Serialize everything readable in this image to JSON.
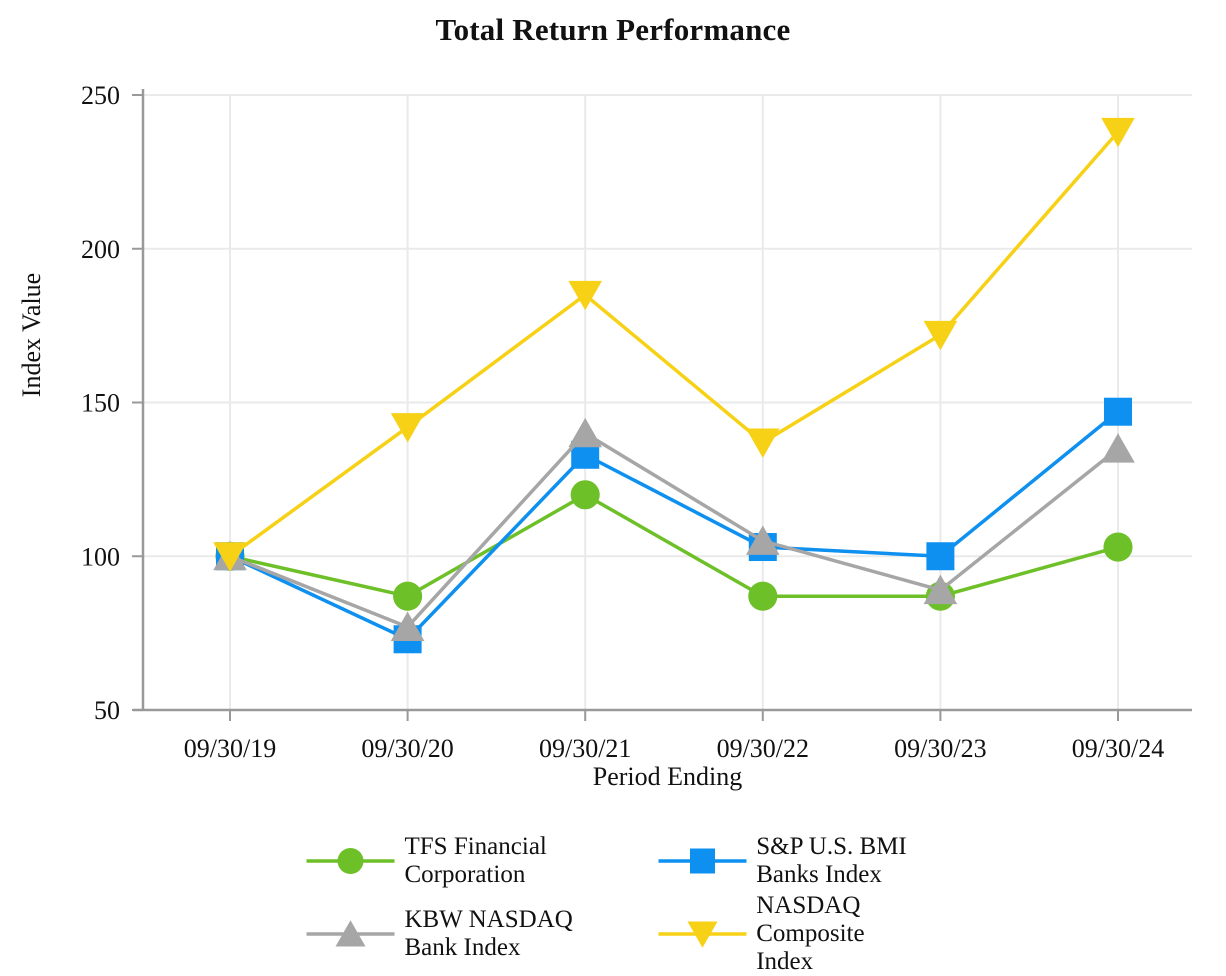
{
  "chart_data": {
    "type": "line",
    "title": "Total Return Performance",
    "xlabel": "Period Ending",
    "ylabel": "Index Value",
    "categories": [
      "09/30/19",
      "09/30/20",
      "09/30/21",
      "09/30/22",
      "09/30/23",
      "09/30/24"
    ],
    "y_ticks": [
      50,
      100,
      150,
      200,
      250
    ],
    "ylim": [
      50,
      250
    ],
    "grid": true,
    "legend_position": "bottom",
    "series": [
      {
        "name": "TFS Financial Corporation",
        "marker": "circle",
        "color": "#6EC028",
        "values": [
          100,
          87,
          120,
          87,
          87,
          103
        ]
      },
      {
        "name": "S&P U.S. BMI Banks Index",
        "marker": "square",
        "color": "#0E90F0",
        "values": [
          100,
          73,
          133,
          103,
          100,
          147
        ]
      },
      {
        "name": "KBW NASDAQ Bank Index",
        "marker": "triangle-up",
        "color": "#A6A6A6",
        "values": [
          100,
          77,
          140,
          105,
          89,
          135
        ]
      },
      {
        "name": "NASDAQ Composite Index",
        "marker": "triangle-down",
        "color": "#F7D116",
        "values": [
          100,
          142,
          185,
          137,
          172,
          238
        ]
      }
    ]
  },
  "colors": {
    "axis": "#999999",
    "grid": "#EAEAEA",
    "text": "#111111",
    "background": "#FFFFFF"
  }
}
